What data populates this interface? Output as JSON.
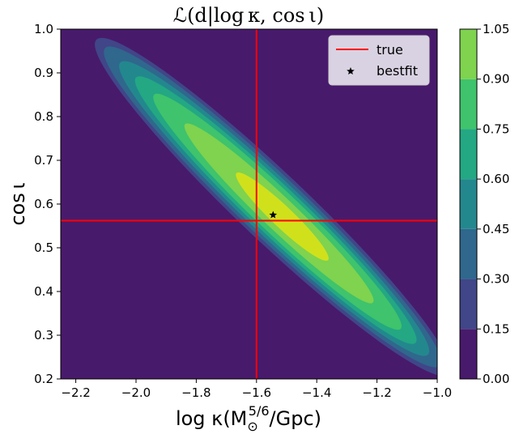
{
  "chart_data": {
    "type": "contour",
    "title": "ℒ(d|log κ, cos ι)",
    "xlabel": "log κ(M☉⁵ᐟ⁶/Gpc)",
    "xlabel_parts": {
      "pre": "log κ(M",
      "sub": "⊙",
      "sup": "5/6",
      "post": "/Gpc)"
    },
    "ylabel": "cos ι",
    "xlim": [
      -2.25,
      -1.0
    ],
    "ylim": [
      0.2,
      1.0
    ],
    "xticks": [
      -2.2,
      -2.0,
      -1.8,
      -1.6,
      -1.4,
      -1.2,
      -1.0
    ],
    "xtick_labels": [
      "−2.2",
      "−2.0",
      "−1.8",
      "−1.6",
      "−1.4",
      "−1.2",
      "−1.0"
    ],
    "yticks": [
      0.2,
      0.3,
      0.4,
      0.5,
      0.6,
      0.7,
      0.8,
      0.9,
      1.0
    ],
    "ytick_labels": [
      "0.2",
      "0.3",
      "0.4",
      "0.5",
      "0.6",
      "0.7",
      "0.8",
      "0.9",
      "1.0"
    ],
    "levels": [
      0.0,
      0.15,
      0.3,
      0.45,
      0.6,
      0.75,
      0.9,
      1.05
    ],
    "colorbar_labels": [
      "0.00",
      "0.15",
      "0.30",
      "0.45",
      "0.60",
      "0.75",
      "0.90",
      "1.05"
    ],
    "level_colors": [
      "#481a6c",
      "#404688",
      "#30678d",
      "#23888e",
      "#23a883",
      "#3fc36c",
      "#7fd34e",
      "#d0e11c"
    ],
    "true_value": {
      "x": -1.6,
      "y": 0.562
    },
    "bestfit": {
      "x": -1.545,
      "y": 0.575
    },
    "legend": {
      "position": "top-right",
      "entries": [
        "true",
        "bestfit"
      ]
    },
    "colors": {
      "true_line": "#ff0000",
      "bestfit_marker": "#000000",
      "legend_bg": "#d9d2e2"
    }
  }
}
